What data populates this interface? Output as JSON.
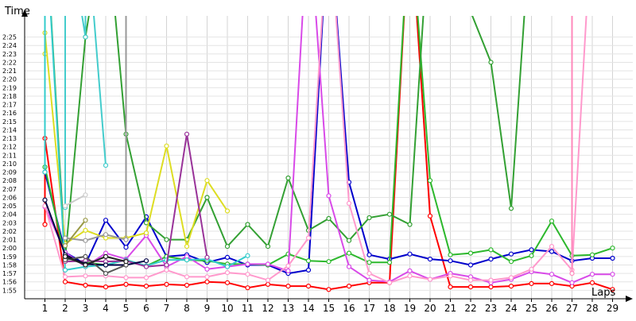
{
  "chart_data": {
    "type": "line",
    "title": "",
    "xlabel": "Laps",
    "ylabel": "Time",
    "grid": true,
    "legend": "none",
    "xlim": [
      0,
      30
    ],
    "ylim": [
      114,
      147.5
    ],
    "x_ticks": [
      1,
      2,
      3,
      4,
      5,
      6,
      7,
      8,
      9,
      10,
      11,
      12,
      13,
      14,
      15,
      16,
      17,
      18,
      19,
      20,
      21,
      22,
      23,
      24,
      25,
      26,
      27,
      28,
      29
    ],
    "y_tick_labels": [
      "1:55",
      "1:56",
      "1:57",
      "1:58",
      "1:59",
      "2:00",
      "2:01",
      "2:02",
      "2:03",
      "2:04",
      "2:05",
      "2:06",
      "2:07",
      "2:08",
      "2:09",
      "2:10",
      "2:11",
      "2:12",
      "2:13",
      "2:14",
      "2:15",
      "2:16",
      "2:17",
      "2:18",
      "2:19",
      "2:20",
      "2:21",
      "2:22",
      "2:23",
      "2:24",
      "2:25"
    ],
    "y_tick_values": [
      115,
      116,
      117,
      118,
      119,
      120,
      121,
      122,
      123,
      124,
      125,
      126,
      127,
      128,
      129,
      130,
      131,
      132,
      133,
      134,
      135,
      136,
      137,
      138,
      139,
      140,
      141,
      142,
      143,
      144,
      145
    ],
    "series": [
      {
        "color": "#ff0000",
        "points": [
          [
            1,
            122.8
          ],
          [
            1,
            133.0
          ],
          [
            2,
            116.0
          ],
          [
            3,
            115.6
          ],
          [
            4,
            115.4
          ],
          [
            5,
            115.7
          ],
          [
            6,
            115.5
          ],
          [
            7,
            115.7
          ],
          [
            8,
            115.6
          ],
          [
            9,
            116.0
          ],
          [
            10,
            115.9
          ],
          [
            11,
            115.3
          ],
          [
            12,
            115.7
          ],
          [
            13,
            115.5
          ],
          [
            14,
            115.5
          ],
          [
            15,
            115.1
          ],
          [
            16,
            115.5
          ],
          [
            17,
            115.9
          ],
          [
            18,
            115.9
          ],
          [
            19,
            160.0
          ],
          [
            20,
            123.8
          ],
          [
            21,
            115.4
          ],
          [
            22,
            115.4
          ],
          [
            23,
            115.4
          ],
          [
            24,
            115.5
          ],
          [
            25,
            115.8
          ],
          [
            26,
            115.8
          ],
          [
            27,
            115.5
          ],
          [
            28,
            115.9
          ],
          [
            29,
            115.1
          ]
        ]
      },
      {
        "color": "#0000cc",
        "points": [
          [
            1,
            129.0
          ],
          [
            2,
            119.5
          ],
          [
            3,
            118.1
          ],
          [
            4,
            123.3
          ],
          [
            5,
            120.1
          ],
          [
            6,
            123.7
          ],
          [
            7,
            119.0
          ],
          [
            8,
            119.2
          ],
          [
            9,
            118.3
          ],
          [
            10,
            118.9
          ],
          [
            11,
            118.0
          ],
          [
            12,
            118.0
          ],
          [
            13,
            117.0
          ],
          [
            14,
            117.4
          ],
          [
            15,
            160.0
          ],
          [
            16,
            127.8
          ],
          [
            17,
            119.2
          ],
          [
            18,
            118.7
          ],
          [
            19,
            119.3
          ],
          [
            20,
            118.7
          ],
          [
            21,
            118.5
          ],
          [
            22,
            118.0
          ],
          [
            23,
            118.7
          ],
          [
            24,
            119.3
          ],
          [
            25,
            119.8
          ],
          [
            26,
            119.6
          ],
          [
            27,
            118.5
          ],
          [
            28,
            118.8
          ],
          [
            29,
            118.8
          ]
        ]
      },
      {
        "color": "#2db82d",
        "points": [
          [
            1,
            129.6
          ],
          [
            2,
            118.8
          ],
          [
            3,
            118.3
          ],
          [
            4,
            118.0
          ],
          [
            5,
            118.6
          ],
          [
            6,
            117.9
          ],
          [
            7,
            119.0
          ],
          [
            8,
            118.6
          ],
          [
            9,
            118.5
          ],
          [
            10,
            118.1
          ],
          [
            11,
            118.1
          ],
          [
            12,
            118.0
          ],
          [
            13,
            119.3
          ],
          [
            14,
            118.5
          ],
          [
            15,
            118.4
          ],
          [
            16,
            119.4
          ],
          [
            17,
            118.3
          ],
          [
            18,
            118.3
          ],
          [
            19,
            160.0
          ],
          [
            20,
            128.0
          ],
          [
            21,
            119.2
          ],
          [
            22,
            119.4
          ],
          [
            23,
            119.8
          ],
          [
            24,
            118.4
          ],
          [
            25,
            119.1
          ],
          [
            26,
            123.2
          ],
          [
            27,
            119.1
          ],
          [
            28,
            119.2
          ],
          [
            29,
            120.0
          ]
        ]
      },
      {
        "color": "#33a033",
        "points": [
          [
            1,
            160.0
          ],
          [
            2,
            118.8
          ],
          [
            3,
            145.0
          ],
          [
            4,
            160.0
          ],
          [
            5,
            133.5
          ],
          [
            6,
            123.0
          ],
          [
            7,
            121.0
          ],
          [
            8,
            121.0
          ],
          [
            9,
            126.0
          ],
          [
            10,
            120.2
          ],
          [
            11,
            122.8
          ],
          [
            12,
            120.2
          ],
          [
            13,
            128.3
          ],
          [
            14,
            122.1
          ],
          [
            15,
            123.5
          ],
          [
            16,
            120.9
          ],
          [
            17,
            123.6
          ],
          [
            18,
            124.0
          ],
          [
            19,
            122.8
          ],
          [
            20,
            160.0
          ],
          [
            23,
            142.0
          ],
          [
            24,
            124.7
          ],
          [
            25,
            160.0
          ]
        ]
      },
      {
        "color": "#d84ae8",
        "points": [
          [
            1,
            124.9
          ],
          [
            2,
            119.5
          ],
          [
            3,
            117.8
          ],
          [
            4,
            119.4
          ],
          [
            5,
            118.7
          ],
          [
            6,
            121.5
          ],
          [
            7,
            117.8
          ],
          [
            8,
            119.0
          ],
          [
            9,
            117.5
          ],
          [
            10,
            117.8
          ],
          [
            11,
            118.1
          ],
          [
            12,
            118.1
          ],
          [
            13,
            117.3
          ],
          [
            14,
            160.0
          ],
          [
            15,
            126.2
          ],
          [
            16,
            117.8
          ],
          [
            17,
            116.2
          ],
          [
            18,
            116.0
          ],
          [
            19,
            117.3
          ],
          [
            20,
            116.3
          ],
          [
            21,
            117.0
          ],
          [
            22,
            116.6
          ],
          [
            23,
            115.9
          ],
          [
            24,
            116.3
          ],
          [
            25,
            117.2
          ],
          [
            26,
            116.9
          ],
          [
            27,
            115.9
          ],
          [
            28,
            116.9
          ],
          [
            29,
            116.9
          ]
        ]
      },
      {
        "color": "#ff99cc",
        "points": [
          [
            1,
            125.0
          ],
          [
            2,
            116.6
          ],
          [
            3,
            116.7
          ],
          [
            4,
            116.7
          ],
          [
            5,
            116.5
          ],
          [
            6,
            116.5
          ],
          [
            7,
            117.4
          ],
          [
            8,
            116.6
          ],
          [
            9,
            116.6
          ],
          [
            10,
            117.1
          ],
          [
            11,
            116.9
          ],
          [
            12,
            116.2
          ],
          [
            13,
            117.9
          ],
          [
            14,
            121.2
          ],
          [
            15,
            160.0
          ],
          [
            16,
            125.3
          ],
          [
            17,
            117.0
          ],
          [
            18,
            115.9
          ],
          [
            19,
            116.7
          ],
          [
            20,
            116.3
          ],
          [
            21,
            116.7
          ],
          [
            22,
            116.2
          ],
          [
            23,
            116.2
          ],
          [
            24,
            116.5
          ],
          [
            25,
            117.5
          ],
          [
            26,
            120.2
          ],
          [
            27,
            117.4
          ],
          [
            28,
            160.0
          ]
        ]
      },
      {
        "color": "#dddd22",
        "points": [
          [
            1,
            143.0
          ],
          [
            1,
            145.5
          ],
          [
            2,
            120.5
          ],
          [
            3,
            122.1
          ],
          [
            4,
            121.2
          ],
          [
            5,
            121.2
          ],
          [
            6,
            121.8
          ],
          [
            7,
            132.1
          ],
          [
            8,
            120.2
          ],
          [
            9,
            128.0
          ],
          [
            10,
            124.4
          ]
        ]
      },
      {
        "color": "#33cccc",
        "points": [
          [
            1,
            129.0
          ],
          [
            1,
            160.0
          ],
          [
            2,
            117.4
          ],
          [
            3,
            117.8
          ],
          [
            4,
            118.0
          ],
          [
            5,
            118.6
          ],
          [
            6,
            117.9
          ],
          [
            7,
            118.6
          ],
          [
            8,
            118.6
          ],
          [
            9,
            118.7
          ],
          [
            10,
            117.8
          ],
          [
            11,
            119.1
          ]
        ]
      },
      {
        "color": "#44cccc",
        "points": [
          [
            2,
            124.8
          ],
          [
            2,
            160.0
          ],
          [
            3,
            145.0
          ],
          [
            3,
            160.0
          ],
          [
            4,
            129.8
          ]
        ]
      },
      {
        "color": "#993399",
        "points": [
          [
            2,
            118.4
          ],
          [
            3,
            118.5
          ],
          [
            4,
            118.4
          ],
          [
            5,
            118.5
          ],
          [
            6,
            117.8
          ],
          [
            7,
            118.0
          ],
          [
            8,
            133.5
          ],
          [
            9,
            118.9
          ]
        ]
      },
      {
        "color": "#000044",
        "points": [
          [
            1,
            125.7
          ],
          [
            2,
            119.2
          ],
          [
            3,
            118.1
          ],
          [
            4,
            118.0
          ],
          [
            5,
            118.0
          ],
          [
            6,
            118.5
          ]
        ]
      },
      {
        "color": "#555555",
        "points": [
          [
            2,
            118.6
          ],
          [
            3,
            119.0
          ],
          [
            4,
            117.0
          ],
          [
            5,
            118.0
          ]
        ]
      },
      {
        "color": "#ff88bb",
        "points": [
          [
            27,
            160.0
          ],
          [
            27,
            117.0
          ]
        ]
      },
      {
        "color": "#cccccc",
        "points": [
          [
            2,
            125.0
          ],
          [
            3,
            126.3
          ]
        ]
      },
      {
        "color": "#999999",
        "points": [
          [
            2,
            121.2
          ],
          [
            3,
            120.9
          ],
          [
            4,
            121.6
          ],
          [
            5,
            121.0
          ],
          [
            5,
            160.0
          ]
        ]
      },
      {
        "color": "#999944",
        "points": [
          [
            2,
            120.3
          ],
          [
            3,
            123.3
          ]
        ]
      },
      {
        "color": "#222222",
        "points": [
          [
            2,
            119.0
          ],
          [
            3,
            118.0
          ],
          [
            4,
            119.0
          ],
          [
            5,
            118.4
          ]
        ]
      }
    ]
  }
}
